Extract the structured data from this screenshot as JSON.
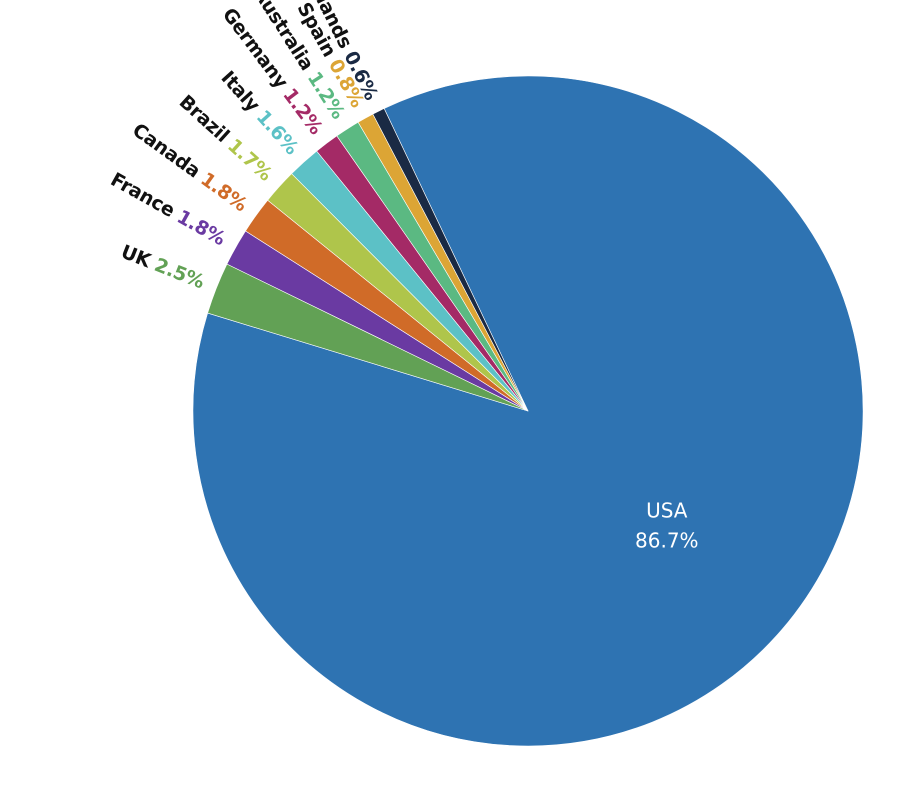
{
  "chart_data": {
    "type": "pie",
    "title": "",
    "start_angle_deg": 163,
    "direction": "counterclockwise",
    "slices": [
      {
        "label": "USA",
        "value": 86.7,
        "value_label": "86.7%",
        "color": "#2e73b2"
      },
      {
        "label": "Netherlands",
        "value": 0.6,
        "value_label": "0.6%",
        "color": "#1a2a44"
      },
      {
        "label": "Spain",
        "value": 0.8,
        "value_label": "0.8%",
        "color": "#dca535"
      },
      {
        "label": "Australia",
        "value": 1.2,
        "value_label": "1.2%",
        "color": "#5bb982"
      },
      {
        "label": "Germany",
        "value": 1.2,
        "value_label": "1.2%",
        "color": "#a42a66"
      },
      {
        "label": "Italy",
        "value": 1.6,
        "value_label": "1.6%",
        "color": "#5cc1c6"
      },
      {
        "label": "Brazil",
        "value": 1.7,
        "value_label": "1.7%",
        "color": "#afc54b"
      },
      {
        "label": "Canada",
        "value": 1.8,
        "value_label": "1.8%",
        "color": "#d06b28"
      },
      {
        "label": "France",
        "value": 1.8,
        "value_label": "1.8%",
        "color": "#6a3aa2"
      },
      {
        "label": "UK",
        "value": 2.5,
        "value_label": "2.5%",
        "color": "#62a155"
      }
    ]
  }
}
